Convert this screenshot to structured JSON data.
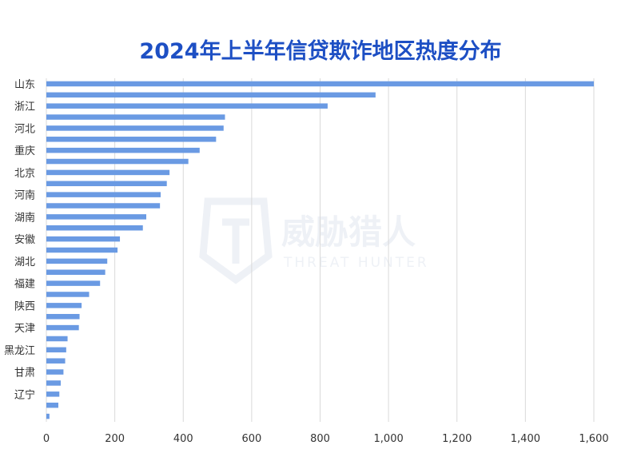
{
  "chart_data": {
    "type": "bar",
    "orientation": "horizontal",
    "title": "2024年上半年信贷欺诈地区热度分布",
    "xlim": [
      0,
      1600
    ],
    "xticks": [
      "0",
      "200",
      "400",
      "600",
      "800",
      "1,000",
      "1,200",
      "1,400",
      "1,600"
    ],
    "xtick_values": [
      0,
      200,
      400,
      600,
      800,
      1000,
      1200,
      1400,
      1600
    ],
    "grid": "vertical",
    "series_color": "#6a9ae3",
    "category_labels": [
      "山东",
      "浙江",
      "河北",
      "重庆",
      "北京",
      "河南",
      "湖南",
      "安徽",
      "湖北",
      "福建",
      "陕西",
      "天津",
      "黑龙江",
      "甘肃",
      "辽宁"
    ],
    "values": [
      1600,
      962,
      822,
      522,
      518,
      496,
      448,
      415,
      360,
      352,
      334,
      332,
      292,
      282,
      215,
      208,
      178,
      172,
      157,
      125,
      103,
      97,
      95,
      62,
      58,
      55,
      50,
      42,
      38,
      35,
      9
    ]
  },
  "watermark": {
    "text": "威胁猎人",
    "subtext": "THREAT HUNTER"
  }
}
